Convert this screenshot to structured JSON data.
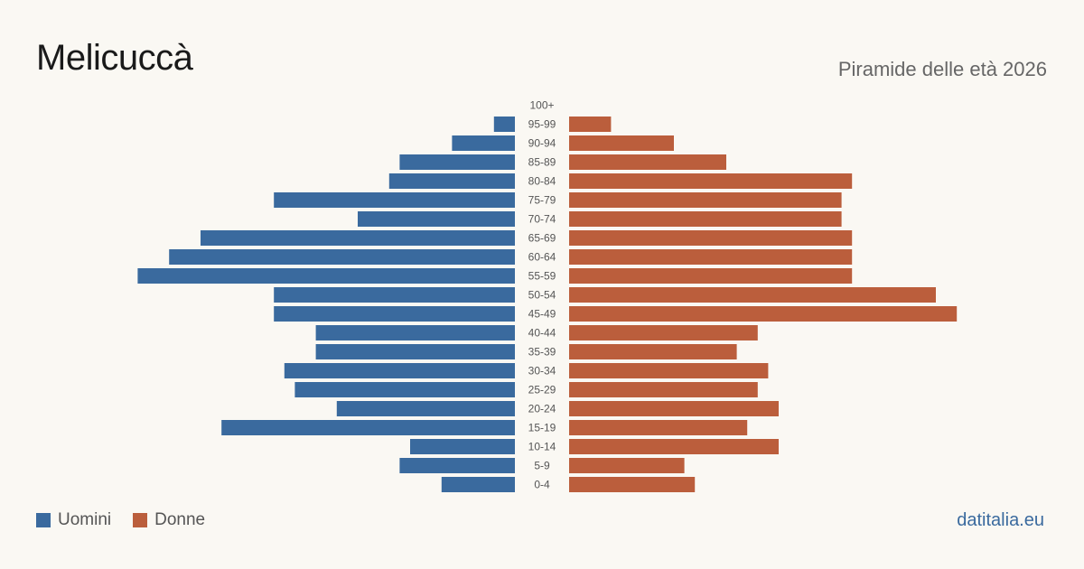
{
  "header": {
    "title": "Melicuccà",
    "subtitle": "Piramide delle età 2026"
  },
  "legend": {
    "men_label": "Uomini",
    "women_label": "Donne"
  },
  "colors": {
    "men": "#3a6a9e",
    "women": "#bb5e3c",
    "label": "#555555"
  },
  "footer": {
    "brand": "datitalia.eu"
  },
  "chart_data": {
    "type": "bar",
    "orientation": "horizontal-pyramid",
    "categories": [
      "100+",
      "95-99",
      "90-94",
      "85-89",
      "80-84",
      "75-79",
      "70-74",
      "65-69",
      "60-64",
      "55-59",
      "50-54",
      "45-49",
      "40-44",
      "35-39",
      "30-34",
      "25-29",
      "20-24",
      "15-19",
      "10-14",
      "5-9",
      "0-4"
    ],
    "series": [
      {
        "name": "Uomini",
        "values": [
          0,
          2,
          6,
          11,
          12,
          23,
          15,
          30,
          33,
          36,
          23,
          23,
          19,
          19,
          22,
          21,
          17,
          28,
          10,
          11,
          7
        ]
      },
      {
        "name": "Donne",
        "values": [
          0,
          4,
          10,
          15,
          27,
          26,
          26,
          27,
          27,
          27,
          35,
          37,
          18,
          16,
          19,
          18,
          20,
          17,
          20,
          11,
          12
        ]
      }
    ],
    "legend_position": "bottom-left"
  }
}
